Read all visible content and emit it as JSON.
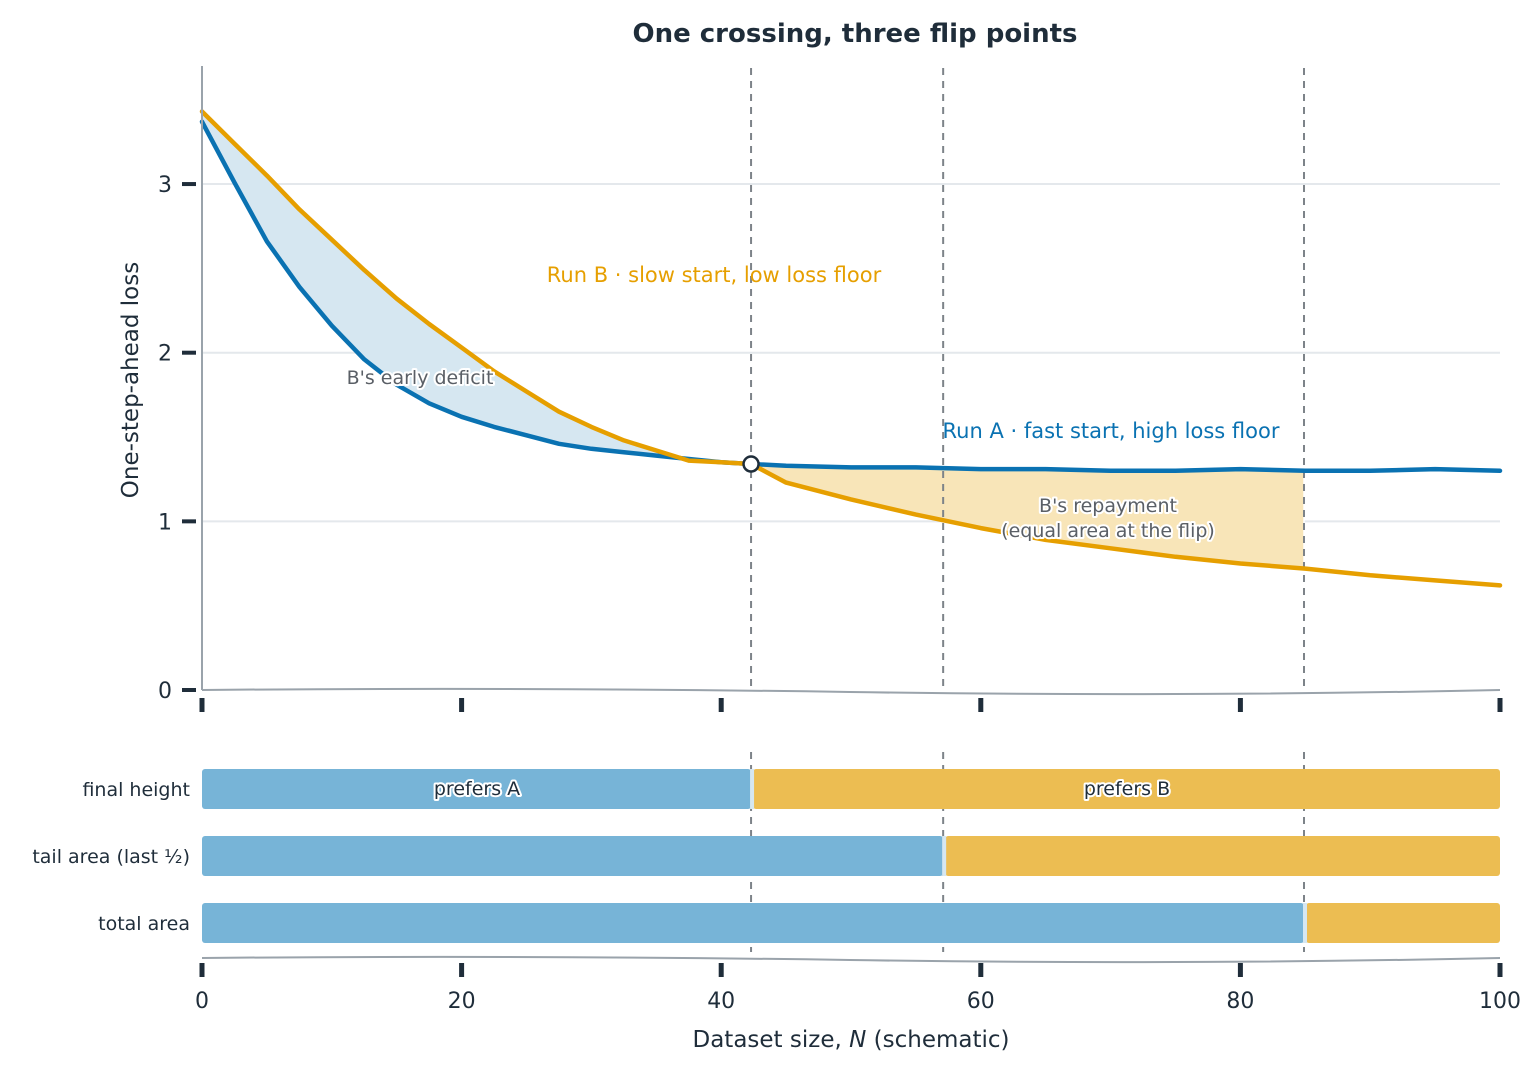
{
  "colors": {
    "run_a": "#0a72b2",
    "run_b": "#e69f00",
    "deficit_fill": "#d6e7f1",
    "repayment_fill": "#f8e5b8",
    "bar_a": "#77b4d7",
    "bar_b": "#ecbd52",
    "grid": "#e4e8ec",
    "axis": "#9aa3ab",
    "flip_line": "#7d8389",
    "text": "#1f2d3a"
  },
  "chart_data": {
    "type": "line",
    "title": "One crossing, three flip points",
    "xlabel_prefix": "Dataset size, ",
    "xlabel_var": "N",
    "xlabel_suffix": " (schematic)",
    "ylabel": "One-step-ahead loss",
    "xlim": [
      0,
      100
    ],
    "ylim": [
      0,
      3.7
    ],
    "x_ticks": [
      0,
      20,
      40,
      60,
      80,
      100
    ],
    "x_tick_labels": [
      "0",
      "20",
      "40",
      "60",
      "80",
      "100"
    ],
    "y_ticks": [
      0,
      1,
      2,
      3
    ],
    "y_tick_labels": [
      "0",
      "1",
      "2",
      "3"
    ],
    "grid": true,
    "series": [
      {
        "key": "run_a",
        "name": "Run A · fast start, high loss floor",
        "x": [
          0,
          2.5,
          5,
          7.5,
          10,
          12.5,
          15,
          17.5,
          20,
          22.5,
          25,
          27.5,
          30,
          32.5,
          35,
          37.5,
          40,
          42.3,
          45,
          50,
          55,
          60,
          65,
          70,
          75,
          80,
          85,
          90,
          95,
          100
        ],
        "y": [
          3.37,
          3.01,
          2.66,
          2.39,
          2.16,
          1.96,
          1.81,
          1.7,
          1.62,
          1.56,
          1.51,
          1.46,
          1.43,
          1.41,
          1.39,
          1.37,
          1.35,
          1.34,
          1.33,
          1.32,
          1.32,
          1.31,
          1.31,
          1.3,
          1.3,
          1.31,
          1.3,
          1.3,
          1.31,
          1.3
        ]
      },
      {
        "key": "run_b",
        "name": "Run B · slow start, low loss floor",
        "x": [
          0,
          2.5,
          5,
          7.5,
          10,
          12.5,
          15,
          17.5,
          20,
          22.5,
          25,
          27.5,
          30,
          32.5,
          35,
          37.5,
          40,
          42.3,
          45,
          50,
          55,
          60,
          65,
          70,
          75,
          80,
          85,
          90,
          95,
          100
        ],
        "y": [
          3.43,
          3.24,
          3.05,
          2.85,
          2.67,
          2.49,
          2.32,
          2.17,
          2.03,
          1.89,
          1.77,
          1.65,
          1.56,
          1.48,
          1.42,
          1.36,
          1.35,
          1.34,
          1.23,
          1.13,
          1.04,
          0.96,
          0.89,
          0.84,
          0.79,
          0.75,
          0.72,
          0.68,
          0.65,
          0.62
        ]
      }
    ],
    "crossing": {
      "x": 42.3,
      "y": 1.34
    },
    "flip_points": [
      42.3,
      57.1,
      84.9
    ],
    "shaded_regions": [
      {
        "key": "deficit",
        "label": "B's early deficit",
        "x_from": 0,
        "x_to": 42.3
      },
      {
        "key": "repayment",
        "label_line1": "B's repayment",
        "label_line2": "(equal area at the flip)",
        "x_from": 42.3,
        "x_to": 84.9
      }
    ],
    "preference_rows": [
      {
        "label": "final height",
        "flip": 42.3
      },
      {
        "label": "tail area (last ½)",
        "flip": 57.1
      },
      {
        "label": "total area",
        "flip": 84.9
      }
    ],
    "band_labels": {
      "prefers_a": "prefers A",
      "prefers_b": "prefers B"
    }
  }
}
